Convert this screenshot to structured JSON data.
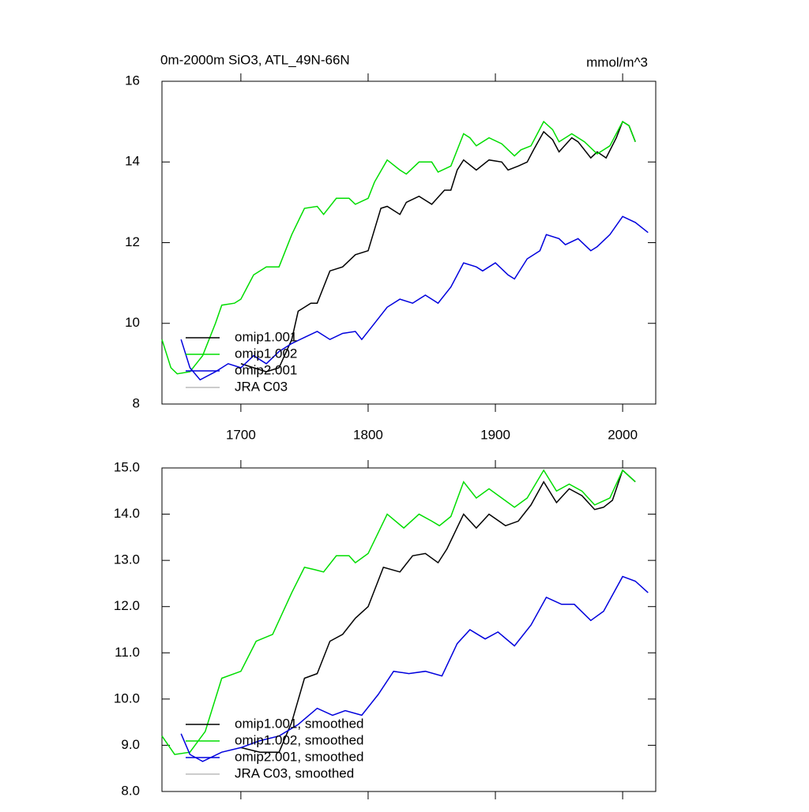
{
  "chart_data": [
    {
      "type": "line",
      "title": "0m-2000m SiO3, ATL_49N-66N",
      "unit_label": "mmol/m^3",
      "xlim": [
        1638,
        2026
      ],
      "xticks": [
        1700,
        1800,
        1900,
        2000
      ],
      "ylim": [
        8,
        16
      ],
      "yticks": [
        8,
        10,
        12,
        14,
        16
      ],
      "legend": "lower left",
      "series": [
        {
          "name": "omip1.001",
          "color": "#000000",
          "x": [
            1700,
            1710,
            1720,
            1730,
            1740,
            1745,
            1755,
            1760,
            1770,
            1780,
            1790,
            1800,
            1810,
            1815,
            1825,
            1830,
            1840,
            1850,
            1860,
            1865,
            1870,
            1875,
            1885,
            1895,
            1905,
            1910,
            1918,
            1925,
            1930,
            1938,
            1945,
            1950,
            1960,
            1965,
            1975,
            1980,
            1987,
            1995,
            2000,
            2005,
            2010
          ],
          "values": [
            9.0,
            8.9,
            8.8,
            8.9,
            9.6,
            10.3,
            10.5,
            10.5,
            11.3,
            11.4,
            11.7,
            11.8,
            12.85,
            12.9,
            12.7,
            13.0,
            13.15,
            12.95,
            13.3,
            13.3,
            13.8,
            14.05,
            13.8,
            14.05,
            14.0,
            13.8,
            13.9,
            14.0,
            14.3,
            14.75,
            14.55,
            14.25,
            14.6,
            14.5,
            14.1,
            14.25,
            14.1,
            14.6,
            15.0,
            14.9,
            14.5
          ]
        },
        {
          "name": "omip1.002",
          "color": "#00dd00",
          "x": [
            1638,
            1645,
            1650,
            1660,
            1670,
            1680,
            1685,
            1695,
            1700,
            1710,
            1720,
            1730,
            1740,
            1750,
            1760,
            1765,
            1775,
            1785,
            1790,
            1800,
            1805,
            1815,
            1825,
            1830,
            1840,
            1850,
            1855,
            1865,
            1875,
            1880,
            1885,
            1895,
            1905,
            1915,
            1920,
            1928,
            1938,
            1945,
            1950,
            1960,
            1970,
            1980,
            1985,
            1990,
            2000,
            2005,
            2010
          ],
          "values": [
            9.6,
            8.9,
            8.75,
            8.8,
            9.2,
            10.0,
            10.45,
            10.5,
            10.6,
            11.2,
            11.4,
            11.4,
            12.2,
            12.85,
            12.9,
            12.7,
            13.1,
            13.1,
            12.95,
            13.1,
            13.5,
            14.05,
            13.8,
            13.7,
            14.0,
            14.0,
            13.75,
            13.9,
            14.7,
            14.6,
            14.4,
            14.6,
            14.45,
            14.15,
            14.3,
            14.4,
            15.0,
            14.8,
            14.5,
            14.7,
            14.5,
            14.2,
            14.3,
            14.4,
            15.0,
            14.9,
            14.5
          ]
        },
        {
          "name": "omip2.001",
          "color": "#0000dd",
          "x": [
            1653,
            1660,
            1668,
            1680,
            1690,
            1700,
            1710,
            1720,
            1730,
            1740,
            1750,
            1760,
            1770,
            1780,
            1790,
            1795,
            1805,
            1815,
            1825,
            1835,
            1845,
            1855,
            1865,
            1875,
            1885,
            1890,
            1900,
            1910,
            1915,
            1925,
            1935,
            1940,
            1950,
            1955,
            1965,
            1975,
            1980,
            1990,
            2000,
            2010,
            2020
          ],
          "values": [
            9.6,
            8.9,
            8.6,
            8.8,
            9.0,
            8.9,
            9.2,
            9.0,
            9.3,
            9.5,
            9.65,
            9.8,
            9.6,
            9.75,
            9.8,
            9.6,
            10.0,
            10.4,
            10.6,
            10.5,
            10.7,
            10.5,
            10.9,
            11.5,
            11.4,
            11.3,
            11.5,
            11.2,
            11.1,
            11.6,
            11.8,
            12.2,
            12.1,
            11.95,
            12.1,
            11.8,
            11.9,
            12.2,
            12.65,
            12.5,
            12.25
          ]
        },
        {
          "name": "JRA C03",
          "color": "#bbbbbb",
          "x": [],
          "values": []
        }
      ]
    },
    {
      "type": "line",
      "xlim": [
        1638,
        2026
      ],
      "xticks": [
        1700,
        1800,
        1900,
        2000
      ],
      "ylim": [
        8,
        15
      ],
      "yticks": [
        {
          "value": 8,
          "label": "8.0"
        },
        {
          "value": 9,
          "label": "9.0"
        },
        {
          "value": 10,
          "label": "10.0"
        },
        {
          "value": 11,
          "label": "11.0"
        },
        {
          "value": 12,
          "label": "12.0"
        },
        {
          "value": 13,
          "label": "13.0"
        },
        {
          "value": 14,
          "label": "14.0"
        },
        {
          "value": 15,
          "label": "15.0"
        }
      ],
      "legend": "lower left",
      "series": [
        {
          "name": "omip1.001, smoothed",
          "color": "#000000",
          "x": [
            1700,
            1715,
            1730,
            1740,
            1750,
            1760,
            1770,
            1780,
            1790,
            1800,
            1812,
            1825,
            1835,
            1845,
            1855,
            1862,
            1875,
            1885,
            1895,
            1908,
            1918,
            1928,
            1938,
            1948,
            1958,
            1968,
            1978,
            1985,
            1992,
            2000,
            2010
          ],
          "values": [
            8.95,
            8.85,
            8.85,
            9.5,
            10.45,
            10.55,
            11.25,
            11.4,
            11.75,
            12.0,
            12.85,
            12.75,
            13.1,
            13.15,
            12.95,
            13.25,
            14.0,
            13.7,
            14.0,
            13.75,
            13.85,
            14.2,
            14.7,
            14.25,
            14.55,
            14.4,
            14.1,
            14.15,
            14.3,
            14.95,
            14.7
          ]
        },
        {
          "name": "omip1.002, smoothed",
          "color": "#00dd00",
          "x": [
            1638,
            1648,
            1660,
            1672,
            1685,
            1700,
            1712,
            1725,
            1740,
            1750,
            1758,
            1765,
            1775,
            1785,
            1790,
            1800,
            1815,
            1828,
            1840,
            1850,
            1856,
            1865,
            1875,
            1885,
            1895,
            1905,
            1915,
            1925,
            1938,
            1948,
            1958,
            1968,
            1978,
            1990,
            2000,
            2010
          ],
          "values": [
            9.2,
            8.8,
            8.85,
            9.3,
            10.45,
            10.6,
            11.25,
            11.4,
            12.3,
            12.85,
            12.8,
            12.75,
            13.1,
            13.1,
            12.95,
            13.15,
            14.0,
            13.7,
            14.0,
            13.85,
            13.75,
            13.95,
            14.7,
            14.35,
            14.55,
            14.35,
            14.15,
            14.35,
            14.95,
            14.5,
            14.65,
            14.5,
            14.2,
            14.35,
            14.95,
            14.7
          ]
        },
        {
          "name": "omip2.001, smoothed",
          "color": "#0000dd",
          "x": [
            1653,
            1660,
            1670,
            1685,
            1700,
            1715,
            1730,
            1745,
            1760,
            1772,
            1782,
            1795,
            1808,
            1820,
            1832,
            1845,
            1858,
            1870,
            1880,
            1892,
            1902,
            1915,
            1928,
            1940,
            1952,
            1962,
            1975,
            1985,
            2000,
            2010,
            2020
          ],
          "values": [
            9.25,
            8.8,
            8.65,
            8.85,
            8.95,
            9.1,
            9.2,
            9.45,
            9.8,
            9.65,
            9.75,
            9.65,
            10.1,
            10.6,
            10.55,
            10.6,
            10.5,
            11.2,
            11.5,
            11.3,
            11.45,
            11.15,
            11.6,
            12.2,
            12.05,
            12.05,
            11.7,
            11.9,
            12.65,
            12.55,
            12.3
          ]
        },
        {
          "name": "JRA C03, smoothed",
          "color": "#bbbbbb",
          "x": [],
          "values": []
        }
      ]
    }
  ]
}
